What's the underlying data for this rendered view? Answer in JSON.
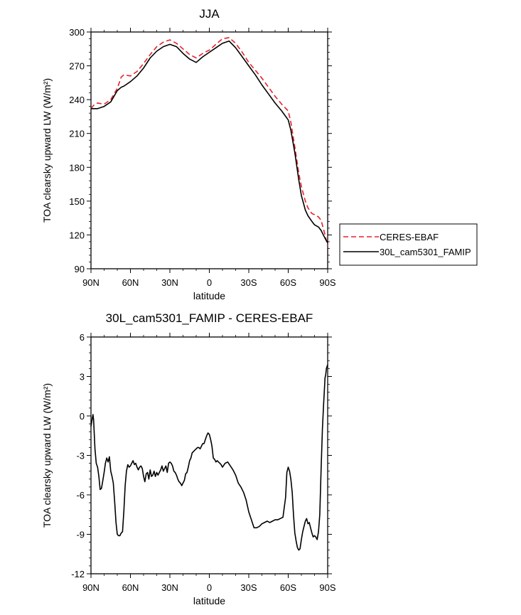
{
  "chart_data": [
    {
      "type": "line",
      "title": "JJA",
      "xlabel": "latitude",
      "ylabel": "TOA clearsky upward LW (W/m²)",
      "xlim": [
        90,
        -90
      ],
      "ylim": [
        90,
        300
      ],
      "x_tick_values": [
        90,
        60,
        30,
        0,
        -30,
        -60,
        -90
      ],
      "x_tick_labels": [
        "90N",
        "60N",
        "30N",
        "0",
        "30S",
        "60S",
        "90S"
      ],
      "y_ticks": [
        90,
        120,
        150,
        180,
        210,
        240,
        270,
        300
      ],
      "legend_position": "right",
      "series": [
        {
          "name": "CERES-EBAF",
          "color": "#e8202a",
          "dash": "dashed",
          "x": [
            90,
            88,
            85,
            80,
            75,
            70,
            67,
            65,
            60,
            55,
            50,
            45,
            40,
            35,
            30,
            25,
            20,
            15,
            10,
            5,
            0,
            -5,
            -10,
            -15,
            -20,
            -25,
            -30,
            -35,
            -40,
            -45,
            -50,
            -55,
            -60,
            -62,
            -65,
            -68,
            -70,
            -73,
            -75,
            -78,
            -80,
            -83,
            -85,
            -88,
            -90
          ],
          "y": [
            232,
            235,
            237,
            236,
            240,
            250,
            260,
            262,
            261,
            265,
            272,
            280,
            287,
            291,
            293,
            290,
            285,
            280,
            277,
            281,
            284,
            289,
            294,
            295,
            290,
            282,
            273,
            266,
            259,
            251,
            243,
            236,
            230,
            220,
            198,
            175,
            163,
            150,
            144,
            139,
            138,
            136,
            133,
            120,
            110
          ]
        },
        {
          "name": "30L_cam5301_FAMIP",
          "color": "#000000",
          "dash": "solid",
          "x": [
            90,
            88,
            85,
            80,
            75,
            70,
            67,
            65,
            60,
            55,
            50,
            45,
            40,
            35,
            30,
            25,
            20,
            15,
            10,
            5,
            0,
            -5,
            -10,
            -15,
            -20,
            -25,
            -30,
            -35,
            -40,
            -45,
            -50,
            -55,
            -60,
            -62,
            -65,
            -68,
            -70,
            -73,
            -75,
            -78,
            -80,
            -83,
            -85,
            -88,
            -90
          ],
          "y": [
            232,
            232,
            232,
            234,
            238,
            248,
            251,
            252,
            256,
            261,
            268,
            277,
            283,
            287,
            289,
            287,
            281,
            276,
            273,
            278,
            282,
            286,
            290,
            292,
            286,
            278,
            270,
            262,
            253,
            245,
            237,
            230,
            222,
            213,
            193,
            169,
            155,
            142,
            137,
            132,
            129,
            127,
            124,
            117,
            113
          ]
        }
      ]
    },
    {
      "type": "line",
      "title": "30L_cam5301_FAMIP - CERES-EBAF",
      "xlabel": "latitude",
      "ylabel": "TOA clearsky upward LW (W/m²)",
      "xlim": [
        90,
        -90
      ],
      "ylim": [
        -12,
        6
      ],
      "x_tick_values": [
        90,
        60,
        30,
        0,
        -30,
        -60,
        -90
      ],
      "x_tick_labels": [
        "90N",
        "60N",
        "30N",
        "0",
        "30S",
        "60S",
        "90S"
      ],
      "y_ticks": [
        -12,
        -9,
        -6,
        -3,
        0,
        3,
        6
      ],
      "series": [
        {
          "color": "#000000",
          "dash": "solid",
          "x": [
            90,
            89,
            88.5,
            88,
            87,
            86,
            85,
            84,
            83,
            82,
            81,
            80,
            79,
            78,
            77,
            76,
            75,
            74,
            73,
            72,
            71,
            70,
            69,
            68,
            67,
            66,
            65,
            64,
            63,
            62,
            61,
            60,
            59,
            58,
            57,
            56,
            55,
            54,
            53,
            52,
            51,
            50,
            49,
            48,
            47,
            46,
            45,
            44,
            43,
            42,
            41,
            40,
            39,
            38,
            37,
            36,
            35,
            34,
            33,
            32,
            31,
            30,
            29,
            28,
            27,
            26,
            25,
            24,
            23,
            22,
            21,
            20,
            19,
            18,
            17,
            16,
            15,
            14,
            13,
            12,
            11,
            10,
            9,
            8,
            7,
            6,
            5,
            4,
            3,
            2,
            1,
            0,
            -1,
            -2,
            -3,
            -4,
            -5,
            -6,
            -7,
            -8,
            -9,
            -10,
            -12,
            -14,
            -16,
            -18,
            -20,
            -22,
            -24,
            -26,
            -28,
            -30,
            -32,
            -34,
            -36,
            -38,
            -40,
            -42,
            -44,
            -46,
            -48,
            -50,
            -52,
            -54,
            -56,
            -58,
            -59,
            -60,
            -61,
            -62,
            -63,
            -64,
            -65,
            -66,
            -67,
            -68,
            -69,
            -70,
            -71,
            -72,
            -73,
            -74,
            -75,
            -76,
            -77,
            -78,
            -79,
            -80,
            -81,
            -82,
            -83,
            -84,
            -85,
            -86,
            -87,
            -88,
            -88.5,
            -89,
            -90
          ],
          "y": [
            -0.8,
            -0.2,
            0.1,
            -0.3,
            -2.5,
            -3.6,
            -3.9,
            -4.6,
            -5.6,
            -5.5,
            -4.9,
            -4.3,
            -3.6,
            -3.2,
            -3.5,
            -3.1,
            -4.2,
            -4.6,
            -5.1,
            -6.5,
            -8.1,
            -9.0,
            -9.1,
            -9.1,
            -8.9,
            -8.8,
            -7.2,
            -5.3,
            -4.2,
            -3.7,
            -3.9,
            -3.8,
            -3.6,
            -3.4,
            -3.7,
            -3.6,
            -3.9,
            -4.1,
            -3.9,
            -3.8,
            -4.0,
            -4.6,
            -5.0,
            -4.4,
            -4.3,
            -4.8,
            -4.1,
            -4.6,
            -4.5,
            -4.2,
            -4.6,
            -4.3,
            -4.5,
            -4.3,
            -4.1,
            -3.8,
            -4.2,
            -4.0,
            -3.8,
            -4.3,
            -3.6,
            -3.5,
            -3.6,
            -3.8,
            -4.2,
            -4.3,
            -4.5,
            -4.8,
            -5.0,
            -5.1,
            -5.3,
            -5.1,
            -4.9,
            -4.4,
            -4.3,
            -3.9,
            -3.4,
            -3.2,
            -2.8,
            -2.7,
            -2.6,
            -2.5,
            -2.4,
            -2.4,
            -2.5,
            -2.3,
            -2.1,
            -2.1,
            -1.8,
            -1.5,
            -1.3,
            -1.4,
            -1.8,
            -2.3,
            -3.2,
            -3.3,
            -3.5,
            -3.4,
            -3.5,
            -3.6,
            -3.7,
            -3.9,
            -3.6,
            -3.5,
            -3.8,
            -4.1,
            -4.5,
            -5.1,
            -5.4,
            -5.8,
            -6.4,
            -7.3,
            -7.9,
            -8.5,
            -8.5,
            -8.4,
            -8.2,
            -8.1,
            -8.0,
            -8.1,
            -8.0,
            -7.9,
            -7.9,
            -7.8,
            -7.7,
            -6.2,
            -4.3,
            -3.9,
            -4.2,
            -4.8,
            -5.8,
            -7.5,
            -8.9,
            -9.5,
            -10.0,
            -10.2,
            -10.1,
            -9.4,
            -8.8,
            -8.4,
            -8.0,
            -7.8,
            -8.2,
            -8.1,
            -8.5,
            -8.9,
            -9.2,
            -9.1,
            -9.2,
            -9.4,
            -8.8,
            -7.5,
            -4.0,
            -1.0,
            1.0,
            2.9,
            3.1,
            3.6,
            3.9
          ]
        }
      ]
    }
  ]
}
